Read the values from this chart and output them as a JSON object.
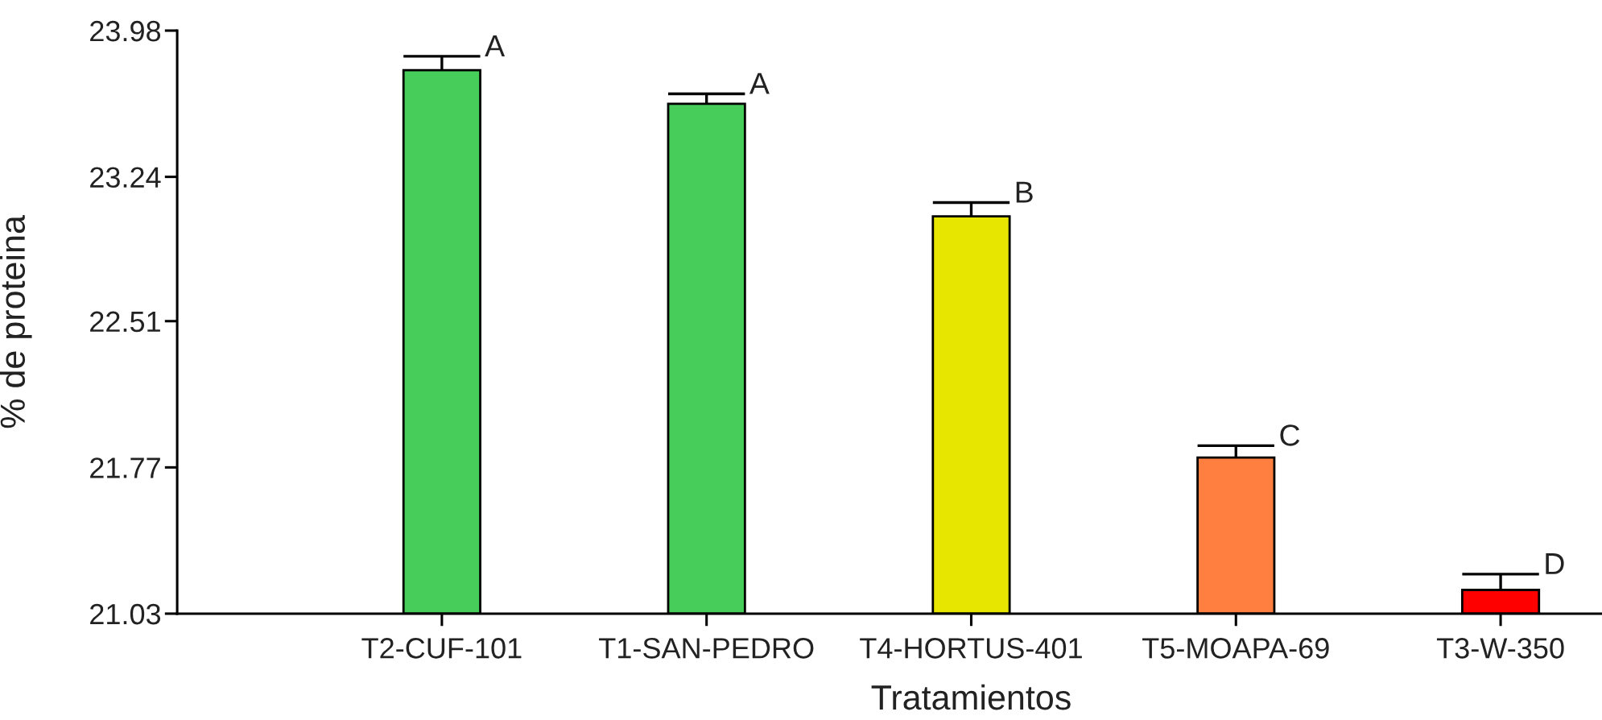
{
  "chart_data": {
    "type": "bar",
    "xlabel": "Tratamientos",
    "ylabel": "% de proteina",
    "categories": [
      "T2-CUF-101",
      "T1-SAN-PEDRO",
      "T4-HORTUS-401",
      "T5-MOAPA-69",
      "T3-W-350"
    ],
    "values": [
      23.78,
      23.61,
      23.04,
      21.82,
      21.15
    ],
    "colors": [
      "#47cd5a",
      "#47cd5a",
      "#e6e600",
      "#ff7f40",
      "#ff0000"
    ],
    "errors": [
      [
        23.78,
        23.85
      ],
      [
        23.61,
        23.66
      ],
      [
        23.04,
        23.11
      ],
      [
        21.82,
        21.88
      ],
      [
        21.15,
        21.23
      ]
    ],
    "ylim": [
      21.03,
      23.98
    ],
    "yticks": [
      21.03,
      21.77,
      22.51,
      23.24,
      23.98
    ],
    "annotations": [
      {
        "text": "A",
        "x": "T2-CUF-101",
        "y": 23.85
      },
      {
        "text": "A",
        "x": "T1-SAN-PEDRO",
        "y": 23.66
      },
      {
        "text": "B",
        "x": "T4-HORTUS-401",
        "y": 23.11
      },
      {
        "text": "C",
        "x": "T5-MOAPA-69",
        "y": 21.88
      },
      {
        "text": "D",
        "x": "T3-W-350",
        "y": 21.23
      }
    ]
  }
}
